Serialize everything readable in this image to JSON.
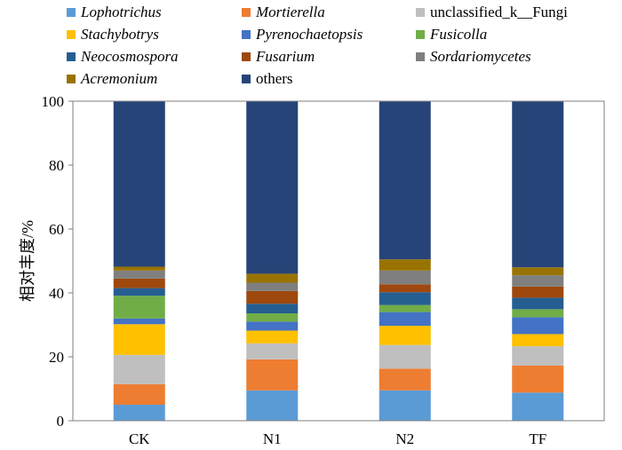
{
  "chart_data": {
    "type": "bar",
    "stacked": true,
    "categories": [
      "CK",
      "N1",
      "N2",
      "TF"
    ],
    "ylabel": "相对丰度/%",
    "ylim": [
      0,
      100
    ],
    "yticks": [
      0,
      20,
      40,
      60,
      80,
      100
    ],
    "grid": false,
    "legend_position": "top",
    "series": [
      {
        "name": "Lophotrichus",
        "italic": true,
        "color": "#5B9BD5",
        "values": [
          5.0,
          9.5,
          9.5,
          8.8
        ]
      },
      {
        "name": "Mortierella",
        "italic": true,
        "color": "#ED7D31",
        "values": [
          6.4,
          9.7,
          6.8,
          8.5
        ]
      },
      {
        "name": "unclassified_k__Fungi",
        "italic": false,
        "color": "#BFBFBF",
        "values": [
          9.2,
          5.0,
          7.4,
          6.0
        ]
      },
      {
        "name": "Stachybotrys",
        "italic": true,
        "color": "#FFC000",
        "values": [
          9.6,
          4.0,
          6.0,
          3.8
        ]
      },
      {
        "name": "Pyrenochaetopsis",
        "italic": true,
        "color": "#4472C4",
        "values": [
          1.8,
          2.8,
          4.3,
          5.3
        ]
      },
      {
        "name": "Fusicolla",
        "italic": true,
        "color": "#70AD47",
        "values": [
          7.1,
          2.6,
          2.2,
          2.5
        ]
      },
      {
        "name": "Neocosmospora",
        "italic": true,
        "color": "#255E91",
        "values": [
          2.4,
          3.0,
          4.0,
          3.6
        ]
      },
      {
        "name": "Fusarium",
        "italic": true,
        "color": "#9E480E",
        "values": [
          3.0,
          4.0,
          2.5,
          3.5
        ]
      },
      {
        "name": "Sordariomycetes",
        "italic": true,
        "color": "#7F7F7F",
        "values": [
          2.5,
          2.6,
          4.3,
          3.5
        ]
      },
      {
        "name": "Acremonium",
        "italic": true,
        "color": "#997300",
        "values": [
          1.2,
          2.8,
          3.5,
          2.5
        ]
      },
      {
        "name": "others",
        "italic": false,
        "color": "#264478",
        "values": [
          51.8,
          54.0,
          49.5,
          52.0
        ]
      }
    ]
  }
}
